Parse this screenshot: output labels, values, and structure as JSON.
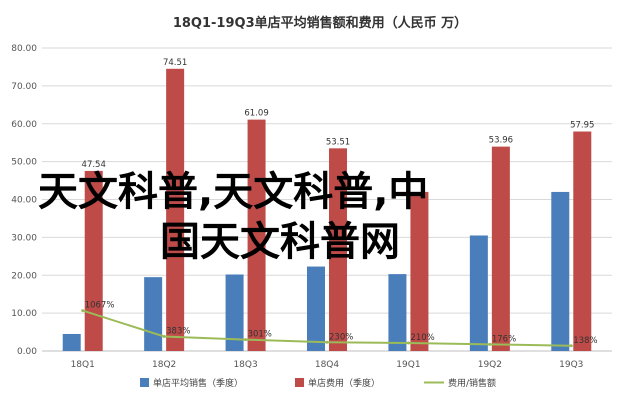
{
  "chart_data": {
    "type": "bar",
    "title": "18Q1-19Q3单店平均销售额和费用（人民币 万）",
    "categories": [
      "18Q1",
      "18Q2",
      "18Q3",
      "18Q4",
      "19Q1",
      "19Q2",
      "19Q3"
    ],
    "ylim": [
      0,
      80
    ],
    "yticks": [
      "0.00",
      "10.00",
      "20.00",
      "30.00",
      "40.00",
      "50.00",
      "60.00",
      "70.00",
      "80.00"
    ],
    "grid": true,
    "legend_position": "bottom",
    "series": [
      {
        "name": "单店平均销售（季度）",
        "type": "bar",
        "color": "#4A7EBB",
        "values": [
          4.5,
          19.5,
          20.2,
          22.3,
          20.3,
          30.5,
          42.0
        ],
        "labels": [
          "",
          "",
          "",
          "",
          "",
          "",
          ""
        ]
      },
      {
        "name": "单店费用（季度）",
        "type": "bar",
        "color": "#BE4B48",
        "values": [
          47.54,
          74.51,
          61.09,
          53.51,
          42.0,
          53.96,
          57.95
        ],
        "labels": [
          "47.54",
          "74.51",
          "61.09",
          "53.51",
          "",
          "53.96",
          "57.95"
        ]
      },
      {
        "name": "费用/销售额",
        "type": "line",
        "color": "#9BBB59",
        "values": [
          10.67,
          3.83,
          3.01,
          2.3,
          2.1,
          1.76,
          1.38
        ],
        "labels": [
          "1067%",
          "383%",
          "301%",
          "230%",
          "210%",
          "176%",
          "138%"
        ]
      }
    ]
  },
  "overlay_text": [
    "天文科普,天文科普,中",
    "国天文科普网"
  ]
}
